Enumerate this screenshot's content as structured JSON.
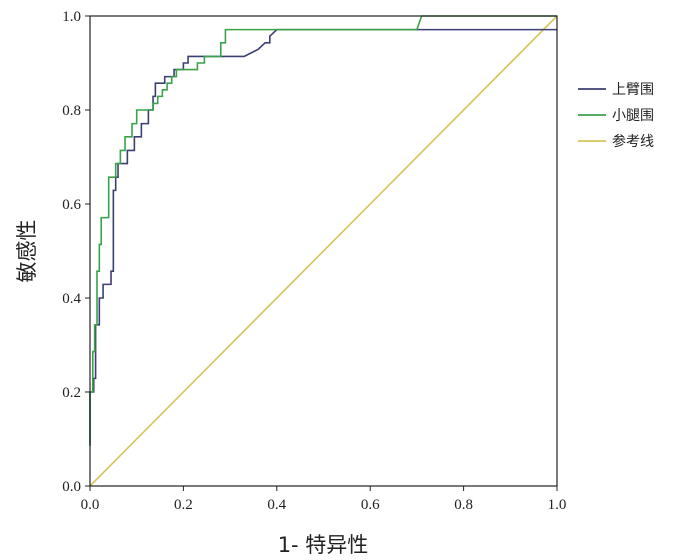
{
  "chart_data": {
    "type": "line",
    "title": "",
    "xlabel": "1- 特异性",
    "ylabel": "敏感性",
    "xlim": [
      0,
      1
    ],
    "ylim": [
      0,
      1
    ],
    "x_ticks": [
      "0.0",
      "0.2",
      "0.4",
      "0.6",
      "0.8",
      "1.0"
    ],
    "y_ticks": [
      "0.0",
      "0.2",
      "0.4",
      "0.6",
      "0.8",
      "1.0"
    ],
    "grid": false,
    "legend_position": "right",
    "series": [
      {
        "name": "上臂围",
        "color": "#3b3f73",
        "points": [
          [
            0.0,
            0.086
          ],
          [
            0.0,
            0.2
          ],
          [
            0.008,
            0.2
          ],
          [
            0.008,
            0.229
          ],
          [
            0.012,
            0.229
          ],
          [
            0.012,
            0.343
          ],
          [
            0.02,
            0.343
          ],
          [
            0.02,
            0.4
          ],
          [
            0.028,
            0.4
          ],
          [
            0.028,
            0.429
          ],
          [
            0.045,
            0.429
          ],
          [
            0.045,
            0.457
          ],
          [
            0.05,
            0.457
          ],
          [
            0.05,
            0.629
          ],
          [
            0.055,
            0.629
          ],
          [
            0.055,
            0.657
          ],
          [
            0.06,
            0.657
          ],
          [
            0.06,
            0.686
          ],
          [
            0.08,
            0.686
          ],
          [
            0.08,
            0.714
          ],
          [
            0.095,
            0.714
          ],
          [
            0.095,
            0.743
          ],
          [
            0.11,
            0.743
          ],
          [
            0.11,
            0.771
          ],
          [
            0.125,
            0.771
          ],
          [
            0.125,
            0.8
          ],
          [
            0.135,
            0.8
          ],
          [
            0.135,
            0.829
          ],
          [
            0.14,
            0.829
          ],
          [
            0.14,
            0.857
          ],
          [
            0.16,
            0.857
          ],
          [
            0.16,
            0.871
          ],
          [
            0.18,
            0.871
          ],
          [
            0.18,
            0.886
          ],
          [
            0.2,
            0.886
          ],
          [
            0.2,
            0.9
          ],
          [
            0.21,
            0.9
          ],
          [
            0.21,
            0.914
          ],
          [
            0.33,
            0.914
          ],
          [
            0.36,
            0.929
          ],
          [
            0.375,
            0.943
          ],
          [
            0.385,
            0.943
          ],
          [
            0.385,
            0.957
          ],
          [
            0.4,
            0.971
          ],
          [
            1.0,
            0.971
          ]
        ]
      },
      {
        "name": "小腿围",
        "color": "#3aa24a",
        "points": [
          [
            0.0,
            0.086
          ],
          [
            0.0,
            0.2
          ],
          [
            0.006,
            0.2
          ],
          [
            0.006,
            0.286
          ],
          [
            0.01,
            0.286
          ],
          [
            0.01,
            0.343
          ],
          [
            0.015,
            0.343
          ],
          [
            0.015,
            0.457
          ],
          [
            0.02,
            0.457
          ],
          [
            0.02,
            0.514
          ],
          [
            0.024,
            0.514
          ],
          [
            0.024,
            0.571
          ],
          [
            0.04,
            0.571
          ],
          [
            0.04,
            0.657
          ],
          [
            0.055,
            0.657
          ],
          [
            0.055,
            0.686
          ],
          [
            0.065,
            0.686
          ],
          [
            0.065,
            0.714
          ],
          [
            0.075,
            0.714
          ],
          [
            0.075,
            0.743
          ],
          [
            0.09,
            0.743
          ],
          [
            0.09,
            0.771
          ],
          [
            0.1,
            0.771
          ],
          [
            0.1,
            0.8
          ],
          [
            0.135,
            0.8
          ],
          [
            0.135,
            0.814
          ],
          [
            0.145,
            0.814
          ],
          [
            0.145,
            0.829
          ],
          [
            0.155,
            0.829
          ],
          [
            0.155,
            0.843
          ],
          [
            0.165,
            0.843
          ],
          [
            0.165,
            0.857
          ],
          [
            0.175,
            0.857
          ],
          [
            0.175,
            0.871
          ],
          [
            0.185,
            0.871
          ],
          [
            0.185,
            0.886
          ],
          [
            0.23,
            0.886
          ],
          [
            0.23,
            0.9
          ],
          [
            0.245,
            0.9
          ],
          [
            0.245,
            0.914
          ],
          [
            0.28,
            0.914
          ],
          [
            0.28,
            0.943
          ],
          [
            0.29,
            0.943
          ],
          [
            0.29,
            0.971
          ],
          [
            0.7,
            0.971
          ],
          [
            0.71,
            1.0
          ],
          [
            1.0,
            1.0
          ]
        ]
      },
      {
        "name": "参考线",
        "color": "#d4c45a",
        "points": [
          [
            0.0,
            0.0
          ],
          [
            1.0,
            1.0
          ]
        ]
      }
    ]
  }
}
